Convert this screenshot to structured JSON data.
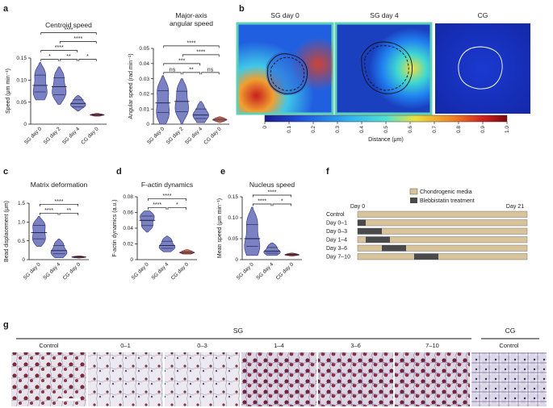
{
  "panel_labels": [
    "a",
    "b",
    "c",
    "d",
    "e",
    "f",
    "g"
  ],
  "colors": {
    "sg": "#7b82c4",
    "sg_edge": "#3c3f8a",
    "cg": "#e27f62",
    "cg_edge": "#a8452f",
    "media": "#d9c39a",
    "blebbi": "#4a4a4a"
  },
  "chart_data": [
    {
      "id": "a1",
      "type": "violin",
      "title": "Centroid speed",
      "ylabel": "Speed (μm min⁻¹)",
      "categories": [
        "SG day 0",
        "SG day 2",
        "SG day 4",
        "CG day 0"
      ],
      "medians": [
        0.088,
        0.085,
        0.047,
        0.021
      ],
      "ranges": [
        [
          0.055,
          0.14
        ],
        [
          0.045,
          0.13
        ],
        [
          0.03,
          0.065
        ],
        [
          0.018,
          0.025
        ]
      ],
      "ylim": [
        0,
        0.15
      ],
      "yticks": [
        "0",
        "0.05",
        "0.10",
        "0.15"
      ],
      "ytick_values": [
        0,
        0.05,
        0.1,
        0.15
      ],
      "sig": [
        {
          "a": 0,
          "b": 1,
          "label": "*"
        },
        {
          "a": 1,
          "b": 2,
          "label": "**"
        },
        {
          "a": 2,
          "b": 3,
          "label": "*"
        },
        {
          "a": 0,
          "b": 2,
          "label": "****"
        },
        {
          "a": 1,
          "b": 3,
          "label": "****"
        },
        {
          "a": 0,
          "b": 3,
          "label": "****"
        }
      ]
    },
    {
      "id": "a2",
      "type": "violin",
      "title": "Major-axis angular speed",
      "title_lines": [
        "Major-axis",
        "angular speed"
      ],
      "ylabel": "Angular speed (rad min⁻¹)",
      "categories": [
        "SG day 0",
        "SG day 2",
        "SG day 4",
        "CG day 0"
      ],
      "medians": [
        0.014,
        0.015,
        0.006,
        0.003
      ],
      "ranges": [
        [
          0.0,
          0.032
        ],
        [
          0.0,
          0.03
        ],
        [
          0.001,
          0.015
        ],
        [
          0.001,
          0.005
        ]
      ],
      "ylim": [
        0,
        0.05
      ],
      "yticks": [
        "0",
        "0.01",
        "0.02",
        "0.03",
        "0.04",
        "0.05"
      ],
      "ytick_values": [
        0,
        0.01,
        0.02,
        0.03,
        0.04,
        0.05
      ],
      "sig": [
        {
          "a": 0,
          "b": 1,
          "label": "ns"
        },
        {
          "a": 1,
          "b": 2,
          "label": "**"
        },
        {
          "a": 2,
          "b": 3,
          "label": "ns"
        },
        {
          "a": 0,
          "b": 2,
          "label": "***"
        },
        {
          "a": 1,
          "b": 3,
          "label": "****"
        },
        {
          "a": 0,
          "b": 3,
          "label": "****"
        }
      ]
    },
    {
      "id": "c",
      "type": "violin",
      "title": "Matrix deformation",
      "ylabel": "Bead displacement (μm)",
      "categories": [
        "SG day 0",
        "SG day 4",
        "CG day 0"
      ],
      "medians": [
        0.72,
        0.24,
        0.07
      ],
      "ranges": [
        [
          0.35,
          1.15
        ],
        [
          0.05,
          0.55
        ],
        [
          0.04,
          0.1
        ]
      ],
      "ylim": [
        0,
        1.5
      ],
      "yticks": [
        "0",
        "0.5",
        "1.0",
        "1.5"
      ],
      "ytick_values": [
        0,
        0.5,
        1.0,
        1.5
      ],
      "sig": [
        {
          "a": 0,
          "b": 1,
          "label": "****"
        },
        {
          "a": 1,
          "b": 2,
          "label": "**"
        },
        {
          "a": 0,
          "b": 2,
          "label": "****"
        }
      ]
    },
    {
      "id": "d",
      "type": "violin",
      "title": "F-actin dynamics",
      "ylabel": "F-actin dynamics (a.u.)",
      "categories": [
        "SG day 0",
        "SG day 4",
        "CG day 0"
      ],
      "medians": [
        0.05,
        0.018,
        0.009
      ],
      "ranges": [
        [
          0.035,
          0.062
        ],
        [
          0.01,
          0.03
        ],
        [
          0.007,
          0.013
        ]
      ],
      "ylim": [
        0,
        0.08
      ],
      "yticks": [
        "0",
        "0.02",
        "0.04",
        "0.06",
        "0.08"
      ],
      "ytick_values": [
        0,
        0.02,
        0.04,
        0.06,
        0.08
      ],
      "sig": [
        {
          "a": 0,
          "b": 1,
          "label": "****"
        },
        {
          "a": 1,
          "b": 2,
          "label": "*"
        },
        {
          "a": 0,
          "b": 2,
          "label": "****"
        }
      ]
    },
    {
      "id": "e",
      "type": "violin",
      "title": "Nucleus speed",
      "ylabel": "Mean speed (μm min⁻¹)",
      "categories": [
        "SG day 0",
        "SG day 4",
        "CG day 0"
      ],
      "medians": [
        0.05,
        0.02,
        0.012
      ],
      "ranges": [
        [
          0.01,
          0.125
        ],
        [
          0.01,
          0.04
        ],
        [
          0.008,
          0.016
        ]
      ],
      "ylim": [
        0,
        0.15
      ],
      "yticks": [
        "0",
        "0.05",
        "0.10",
        "0.15"
      ],
      "ytick_values": [
        0,
        0.05,
        0.1,
        0.15
      ],
      "sig": [
        {
          "a": 0,
          "b": 1,
          "label": "****"
        },
        {
          "a": 1,
          "b": 2,
          "label": "*"
        },
        {
          "a": 0,
          "b": 2,
          "label": "****"
        }
      ]
    }
  ],
  "heatmap": {
    "titles": [
      "SG day 0",
      "SG day 4",
      "CG"
    ],
    "colorbar_ticks": [
      "0",
      "0.1",
      "0.2",
      "0.3",
      "0.4",
      "0.5",
      "0.6",
      "0.7",
      "0.8",
      "0.9",
      "1.0"
    ],
    "colorbar_label": "Distance (μm)"
  },
  "timeline": {
    "legend": [
      "Chondrogenic media",
      "Blebbistatin treatment"
    ],
    "start_label": "Day 0",
    "end_label": "Day 21",
    "rows": [
      {
        "label": "Control",
        "start": null,
        "end": null
      },
      {
        "label": "Day 0–1",
        "start": 0,
        "end": 1
      },
      {
        "label": "Day 0–3",
        "start": 0,
        "end": 3
      },
      {
        "label": "Day 1–4",
        "start": 1,
        "end": 4
      },
      {
        "label": "Day 3–6",
        "start": 3,
        "end": 6
      },
      {
        "label": "Day 7–10",
        "start": 7,
        "end": 10
      }
    ],
    "total_days": 21
  },
  "histology": {
    "group_sg": "SG",
    "group_cg": "CG",
    "labels": [
      "Control",
      "0–1",
      "0–3",
      "1–4",
      "3–6",
      "7–10",
      "Control"
    ]
  }
}
